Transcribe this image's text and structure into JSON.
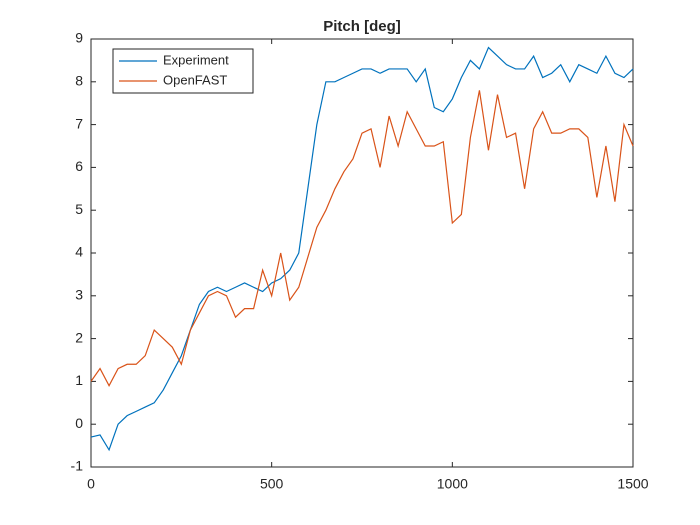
{
  "chart_data": {
    "type": "line",
    "title": "Pitch [deg]",
    "x": [
      0,
      25,
      50,
      75,
      100,
      125,
      150,
      175,
      200,
      225,
      250,
      275,
      300,
      325,
      350,
      375,
      400,
      425,
      450,
      475,
      500,
      525,
      550,
      575,
      600,
      625,
      650,
      675,
      700,
      725,
      750,
      775,
      800,
      825,
      850,
      875,
      900,
      925,
      950,
      975,
      1000,
      1025,
      1050,
      1075,
      1100,
      1125,
      1150,
      1175,
      1200,
      1225,
      1250,
      1275,
      1300,
      1325,
      1350,
      1375,
      1400,
      1425,
      1450,
      1475,
      1500
    ],
    "series": [
      {
        "name": "Experiment",
        "color": "#0072bd",
        "values": [
          -0.3,
          -0.25,
          -0.6,
          0.0,
          0.2,
          0.3,
          0.4,
          0.5,
          0.8,
          1.2,
          1.6,
          2.2,
          2.8,
          3.1,
          3.2,
          3.1,
          3.2,
          3.3,
          3.2,
          3.1,
          3.3,
          3.4,
          3.6,
          4.0,
          5.5,
          7.0,
          8.0,
          8.0,
          8.1,
          8.2,
          8.3,
          8.3,
          8.2,
          8.3,
          8.3,
          8.3,
          8.0,
          8.3,
          7.4,
          7.3,
          7.6,
          8.1,
          8.5,
          8.3,
          8.8,
          8.6,
          8.4,
          8.3,
          8.3,
          8.6,
          8.1,
          8.2,
          8.4,
          8.0,
          8.4,
          8.3,
          8.2,
          8.6,
          8.2,
          8.1,
          8.3
        ]
      },
      {
        "name": "OpenFAST",
        "color": "#d95319",
        "values": [
          1.0,
          1.3,
          0.9,
          1.3,
          1.4,
          1.4,
          1.6,
          2.2,
          2.0,
          1.8,
          1.4,
          2.2,
          2.6,
          3.0,
          3.1,
          3.0,
          2.5,
          2.7,
          2.7,
          3.6,
          3.0,
          4.0,
          2.9,
          3.2,
          3.9,
          4.6,
          5.0,
          5.5,
          5.9,
          6.2,
          6.8,
          6.9,
          6.0,
          7.2,
          6.5,
          7.3,
          6.9,
          6.5,
          6.5,
          6.6,
          4.7,
          4.9,
          6.7,
          7.8,
          6.4,
          7.7,
          6.7,
          6.8,
          5.5,
          6.9,
          7.3,
          6.8,
          6.8,
          6.9,
          6.9,
          6.7,
          5.3,
          6.5,
          5.2,
          7.0,
          6.5
        ]
      }
    ],
    "xlim": [
      0,
      1500
    ],
    "xticks": [
      0,
      500,
      1000,
      1500
    ],
    "ylim": [
      -1,
      9
    ],
    "yticks": [
      -1,
      0,
      1,
      2,
      3,
      4,
      5,
      6,
      7,
      8,
      9
    ],
    "legend": "upper left"
  }
}
